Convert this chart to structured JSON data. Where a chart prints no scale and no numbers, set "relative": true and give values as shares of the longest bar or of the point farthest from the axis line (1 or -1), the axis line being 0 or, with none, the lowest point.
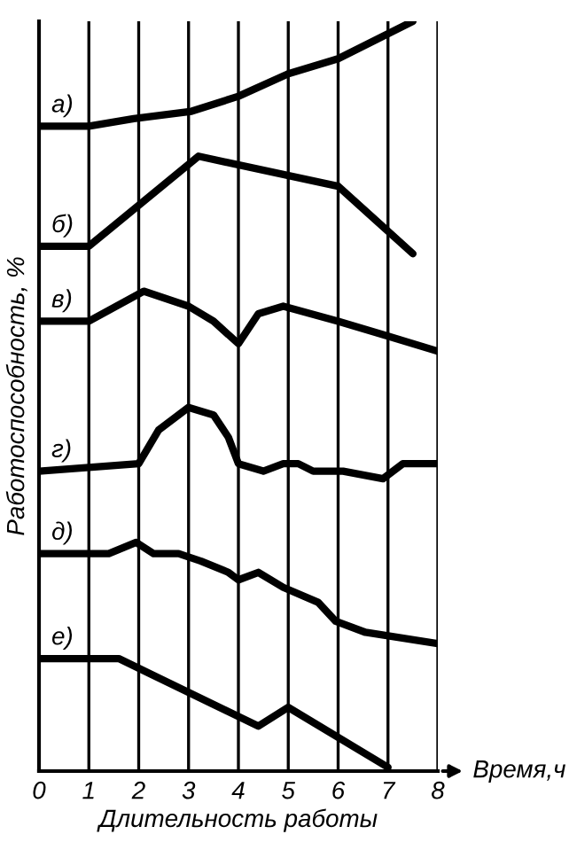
{
  "chart_data": {
    "type": "line",
    "relative": true,
    "xlabel": "Длительность работы",
    "ylabel": "Работоспособность, %",
    "annotations": [
      "Время,ч"
    ],
    "xlim": [
      0,
      8
    ],
    "xticks": [
      0,
      1,
      2,
      3,
      4,
      5,
      6,
      7,
      8
    ],
    "grid": "x",
    "legend": false,
    "marker": "none",
    "line_style": "solid",
    "series": [
      {
        "name": "а)",
        "color": "#000000",
        "x": [
          0,
          1,
          1.9,
          3.06,
          4,
          5,
          6,
          7.5
        ],
        "values": [
          0.86,
          0.86,
          0.87,
          0.88,
          0.9,
          0.93,
          0.95,
          1.0
        ]
      },
      {
        "name": "б)",
        "color": "#000000",
        "x": [
          0,
          1,
          3.2,
          6,
          7.5
        ],
        "values": [
          0.7,
          0.7,
          0.82,
          0.78,
          0.69
        ]
      },
      {
        "name": "в)",
        "color": "#000000",
        "x": [
          0,
          1,
          2.1,
          3,
          3.5,
          4,
          4.4,
          4.9,
          6,
          7,
          8
        ],
        "values": [
          0.6,
          0.6,
          0.64,
          0.62,
          0.6,
          0.57,
          0.61,
          0.62,
          0.6,
          0.58,
          0.56
        ]
      },
      {
        "name": "г)",
        "color": "#000000",
        "x": [
          0,
          2,
          2.4,
          3,
          3.5,
          3.8,
          4,
          4.5,
          4.9,
          5.2,
          5.5,
          6.1,
          6.9,
          7.3,
          8
        ],
        "values": [
          0.4,
          0.41,
          0.455,
          0.485,
          0.475,
          0.445,
          0.41,
          0.4,
          0.41,
          0.41,
          0.4,
          0.4,
          0.39,
          0.41,
          0.41
        ]
      },
      {
        "name": "д)",
        "color": "#000000",
        "x": [
          0,
          1.4,
          1.95,
          2.3,
          2.8,
          3.25,
          3.8,
          4,
          4.4,
          4.9,
          5.6,
          5.95,
          6.55,
          8
        ],
        "values": [
          0.29,
          0.29,
          0.305,
          0.29,
          0.29,
          0.28,
          0.265,
          0.255,
          0.265,
          0.245,
          0.225,
          0.2,
          0.185,
          0.17
        ]
      },
      {
        "name": "е)",
        "color": "#000000",
        "x": [
          0,
          1.6,
          4.4,
          5,
          7
        ],
        "values": [
          0.15,
          0.15,
          0.06,
          0.085,
          0.005
        ]
      }
    ]
  }
}
